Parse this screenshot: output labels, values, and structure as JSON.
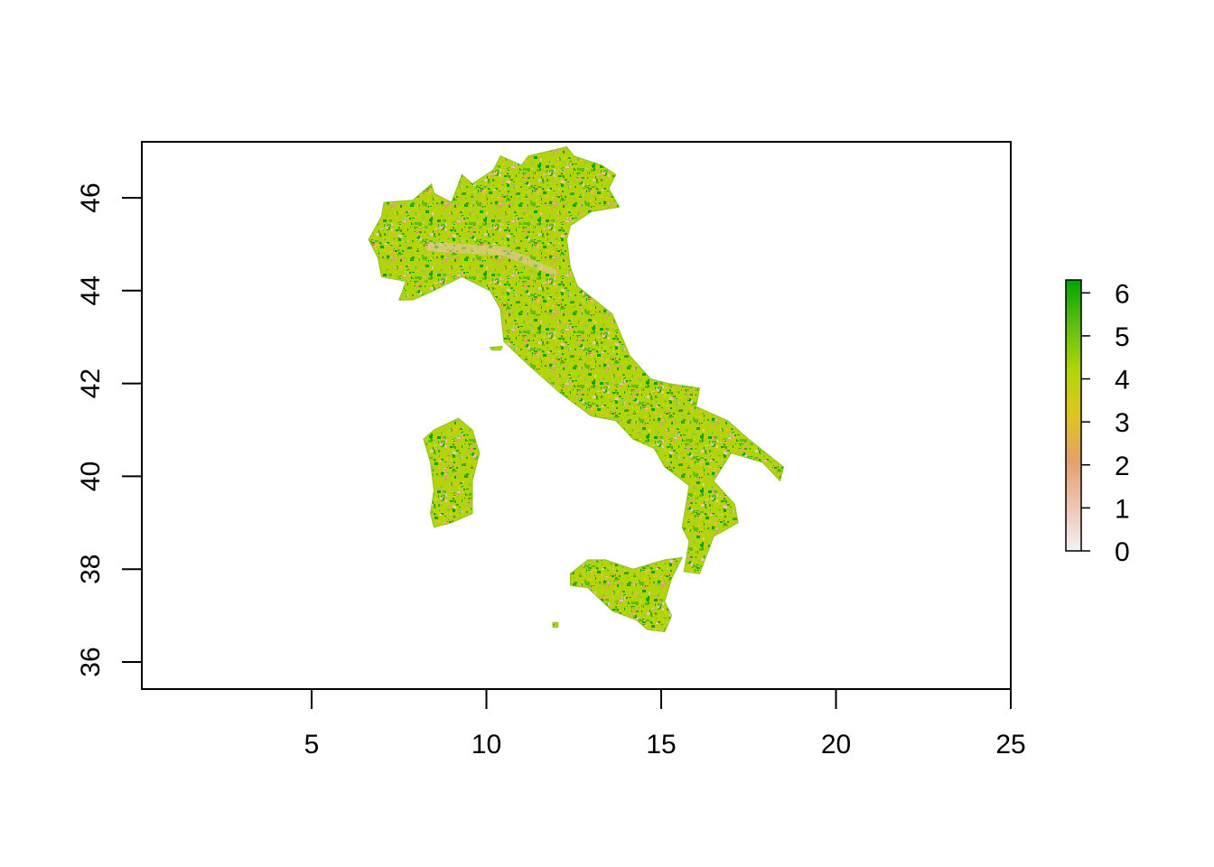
{
  "chart_data": {
    "type": "heatmap",
    "title": "",
    "xlabel": "",
    "ylabel": "",
    "xlim": [
      0.1,
      25
    ],
    "ylim": [
      35.4,
      47.2
    ],
    "x_ticks": [
      5,
      10,
      15,
      20,
      25
    ],
    "y_ticks": [
      36,
      38,
      40,
      42,
      44,
      46
    ],
    "x_tick_labels": [
      "5",
      "10",
      "15",
      "20",
      "25"
    ],
    "y_tick_labels": [
      "36",
      "38",
      "40",
      "42",
      "44",
      "46"
    ],
    "legend": {
      "placement": "right",
      "range": [
        0,
        6.3
      ],
      "ticks": [
        0,
        1,
        2,
        3,
        4,
        5,
        6
      ],
      "tick_labels": [
        "0",
        "1",
        "2",
        "3",
        "4",
        "5",
        "6"
      ],
      "colors": [
        "#f2f2f2",
        "#edc4b4",
        "#e4a06a",
        "#ddc61d",
        "#b1d508",
        "#5ebf10",
        "#00a600"
      ]
    },
    "regions": [
      {
        "name": "Italy (mainland)",
        "value_mix": [
          0.05,
          0.12,
          0.18,
          0.35,
          0.18,
          0.12
        ],
        "outline": [
          [
            6.63,
            45.1
          ],
          [
            7.0,
            45.6
          ],
          [
            7.07,
            45.9
          ],
          [
            7.9,
            45.95
          ],
          [
            8.43,
            46.3
          ],
          [
            8.5,
            46.1
          ],
          [
            9.0,
            45.9
          ],
          [
            9.3,
            46.5
          ],
          [
            9.6,
            46.3
          ],
          [
            10.2,
            46.6
          ],
          [
            10.4,
            46.9
          ],
          [
            11.0,
            46.7
          ],
          [
            11.2,
            46.9
          ],
          [
            12.3,
            47.1
          ],
          [
            12.5,
            46.9
          ],
          [
            13.3,
            46.7
          ],
          [
            13.7,
            46.5
          ],
          [
            13.5,
            46.2
          ],
          [
            13.8,
            45.8
          ],
          [
            13.0,
            45.7
          ],
          [
            12.4,
            45.4
          ],
          [
            12.3,
            45.1
          ],
          [
            12.4,
            44.5
          ],
          [
            12.6,
            44.1
          ],
          [
            13.6,
            43.5
          ],
          [
            14.1,
            42.6
          ],
          [
            14.7,
            42.1
          ],
          [
            15.2,
            42.0
          ],
          [
            16.1,
            41.9
          ],
          [
            16.0,
            41.5
          ],
          [
            16.9,
            41.2
          ],
          [
            17.5,
            40.8
          ],
          [
            18.5,
            40.2
          ],
          [
            18.4,
            39.9
          ],
          [
            17.9,
            40.3
          ],
          [
            17.0,
            40.5
          ],
          [
            16.5,
            39.9
          ],
          [
            17.1,
            39.4
          ],
          [
            17.2,
            39.0
          ],
          [
            16.5,
            38.7
          ],
          [
            16.1,
            37.9
          ],
          [
            15.65,
            37.95
          ],
          [
            15.8,
            38.6
          ],
          [
            15.6,
            38.9
          ],
          [
            15.8,
            39.8
          ],
          [
            15.1,
            40.2
          ],
          [
            14.8,
            40.6
          ],
          [
            14.2,
            40.8
          ],
          [
            13.7,
            41.2
          ],
          [
            13.0,
            41.3
          ],
          [
            12.1,
            41.8
          ],
          [
            11.2,
            42.4
          ],
          [
            10.5,
            42.9
          ],
          [
            10.4,
            43.6
          ],
          [
            10.1,
            44.0
          ],
          [
            9.3,
            44.3
          ],
          [
            8.5,
            44.0
          ],
          [
            7.9,
            43.8
          ],
          [
            7.5,
            43.8
          ],
          [
            7.7,
            44.2
          ],
          [
            7.0,
            44.3
          ],
          [
            6.9,
            44.7
          ]
        ]
      },
      {
        "name": "Sardinia",
        "value_mix": [
          0.02,
          0.1,
          0.14,
          0.22,
          0.24,
          0.28
        ],
        "outline": [
          [
            8.2,
            40.8
          ],
          [
            8.5,
            41.0
          ],
          [
            9.2,
            41.25
          ],
          [
            9.6,
            41.0
          ],
          [
            9.8,
            40.5
          ],
          [
            9.6,
            39.9
          ],
          [
            9.6,
            39.2
          ],
          [
            9.0,
            39.0
          ],
          [
            8.5,
            38.9
          ],
          [
            8.4,
            39.2
          ],
          [
            8.5,
            39.7
          ],
          [
            8.4,
            40.3
          ]
        ]
      },
      {
        "name": "Sicily",
        "value_mix": [
          0.03,
          0.12,
          0.22,
          0.3,
          0.18,
          0.15
        ],
        "outline": [
          [
            12.4,
            37.9
          ],
          [
            12.9,
            38.2
          ],
          [
            13.4,
            38.2
          ],
          [
            14.2,
            38.0
          ],
          [
            15.1,
            38.2
          ],
          [
            15.6,
            38.25
          ],
          [
            15.3,
            37.8
          ],
          [
            15.1,
            37.3
          ],
          [
            15.3,
            37.0
          ],
          [
            15.1,
            36.65
          ],
          [
            14.6,
            36.7
          ],
          [
            14.3,
            36.9
          ],
          [
            13.6,
            37.1
          ],
          [
            12.9,
            37.6
          ],
          [
            12.4,
            37.65
          ]
        ]
      },
      {
        "name": "Elba",
        "value_mix": [
          0.0,
          0.1,
          0.2,
          0.3,
          0.2,
          0.2
        ],
        "outline": [
          [
            10.1,
            42.78
          ],
          [
            10.45,
            42.8
          ],
          [
            10.42,
            42.72
          ],
          [
            10.15,
            42.72
          ]
        ]
      },
      {
        "name": "Pantelleria",
        "value_mix": [
          0.0,
          0.2,
          0.3,
          0.3,
          0.2,
          0.0
        ],
        "outline": [
          [
            11.9,
            36.85
          ],
          [
            12.05,
            36.85
          ],
          [
            12.05,
            36.75
          ],
          [
            11.9,
            36.75
          ]
        ]
      }
    ]
  }
}
